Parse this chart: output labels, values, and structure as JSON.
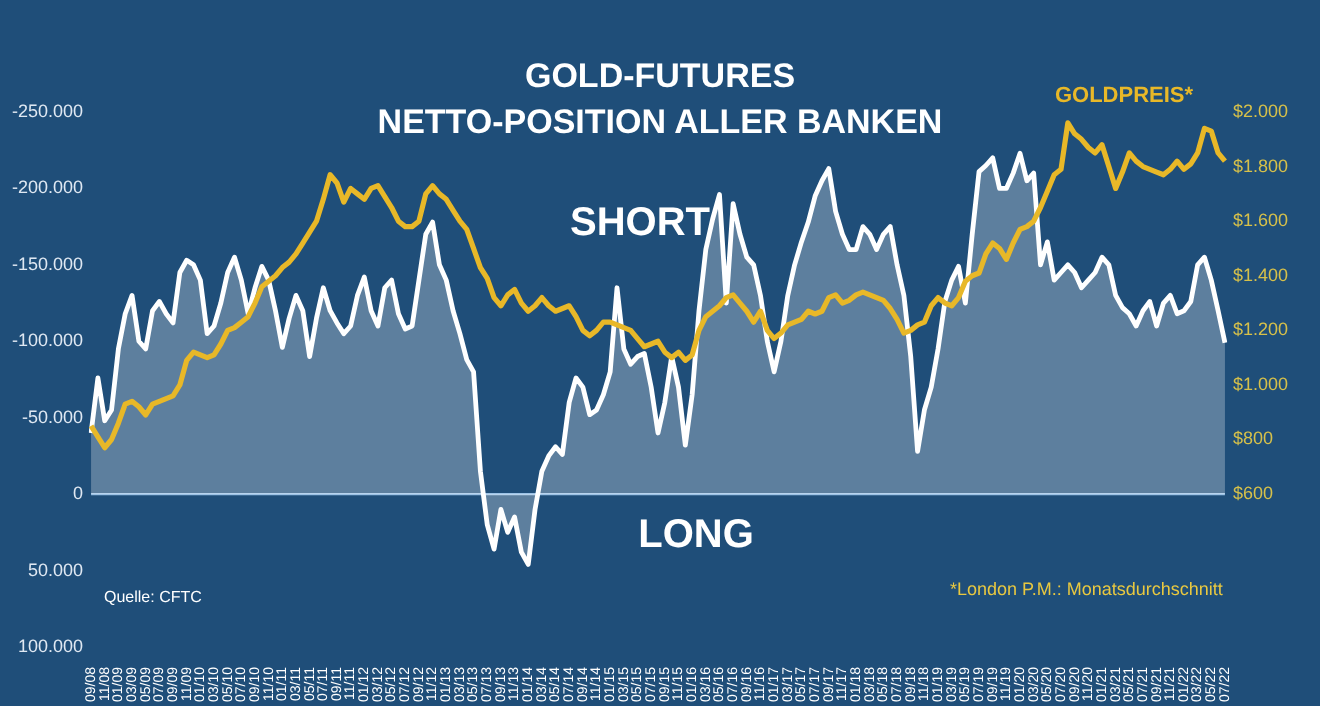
{
  "chart_data": {
    "type": "line",
    "title": "GOLD-FUTURES",
    "subtitle": "NETTO-POSITION ALLER BANKEN",
    "categories": [
      "09/08",
      null,
      "11/08",
      null,
      "01/09",
      null,
      "03/09",
      null,
      "05/09",
      null,
      "07/09",
      null,
      "09/09",
      null,
      "11/09",
      null,
      "01/10",
      null,
      "03/10",
      null,
      "05/10",
      null,
      "07/10",
      null,
      "09/10",
      null,
      "11/10",
      null,
      "01/11",
      null,
      "03/11",
      null,
      "05/11",
      null,
      "07/11",
      null,
      "09/11",
      null,
      "11/11",
      null,
      "01/12",
      null,
      "03/12",
      null,
      "05/12",
      null,
      "07/12",
      null,
      "09/12",
      null,
      "11/12",
      null,
      "01/13",
      null,
      "03/13",
      null,
      "05/13",
      null,
      "07/13",
      null,
      "09/13",
      null,
      "11/13",
      null,
      "01/14",
      null,
      "03/14",
      null,
      "05/14",
      null,
      "07/14",
      null,
      "09/14",
      null,
      "11/14",
      null,
      "01/15",
      null,
      "03/15",
      null,
      "05/15",
      null,
      "07/15",
      null,
      "09/15",
      null,
      "11/15",
      null,
      "01/16",
      null,
      "03/16",
      null,
      "05/16",
      null,
      "07/16",
      null,
      "09/16",
      null,
      "11/16",
      null,
      "01/17",
      null,
      "03/17",
      null,
      "05/17",
      null,
      "07/17",
      null,
      "09/17",
      null,
      "11/17",
      null,
      "01/18",
      null,
      "03/18",
      null,
      "05/18",
      null,
      "07/18",
      null,
      "09/18",
      null,
      "11/18",
      null,
      "01/19",
      null,
      "03/19",
      null,
      "05/19",
      null,
      "07/19",
      null,
      "09/19",
      null,
      "11/19",
      null,
      "01/20",
      null,
      "03/20",
      null,
      "05/20",
      null,
      "07/20",
      null,
      "09/20",
      null,
      "11/20",
      null,
      "01/21",
      null,
      "03/21",
      null,
      "05/21",
      null,
      "07/21",
      null,
      "09/21",
      null,
      "11/21",
      null,
      "01/22",
      null,
      "03/22",
      null,
      "05/22",
      null,
      "07/22"
    ],
    "series": [
      {
        "type": "area",
        "color": "#ffffff",
        "values": [
          -40000,
          -76000,
          -48000,
          -55000,
          -95000,
          -118000,
          -130000,
          -100000,
          -95000,
          -120000,
          -126000,
          -118000,
          -112000,
          -145000,
          -153000,
          -150000,
          -140000,
          -105000,
          -110000,
          -125000,
          -145000,
          -155000,
          -140000,
          -118000,
          -135000,
          -149000,
          -140000,
          -120000,
          -96000,
          -115000,
          -130000,
          -120000,
          -90000,
          -115000,
          -135000,
          -120000,
          -112000,
          -105000,
          -110000,
          -130000,
          -142000,
          -120000,
          -110000,
          -135000,
          -140000,
          -118000,
          -108000,
          -110000,
          -140000,
          -170000,
          -178000,
          -150000,
          -140000,
          -120000,
          -105000,
          -88000,
          -80000,
          -15000,
          20000,
          36000,
          10000,
          25000,
          15000,
          38000,
          46000,
          10000,
          -15000,
          -25000,
          -31000,
          -26000,
          -60000,
          -76000,
          -70000,
          -52000,
          -55000,
          -65000,
          -80000,
          -135000,
          -95000,
          -85000,
          -90000,
          -92000,
          -70000,
          -40000,
          -60000,
          -90000,
          -70000,
          -32000,
          -65000,
          -120000,
          -160000,
          -180000,
          -196000,
          -125000,
          -190000,
          -170000,
          -155000,
          -150000,
          -130000,
          -100000,
          -80000,
          -100000,
          -130000,
          -150000,
          -165000,
          -178000,
          -195000,
          -205000,
          -213000,
          -185000,
          -170000,
          -160000,
          -160000,
          -175000,
          -170000,
          -160000,
          -170000,
          -175000,
          -150000,
          -130000,
          -90000,
          -28000,
          -55000,
          -70000,
          -95000,
          -126000,
          -140000,
          -149000,
          -125000,
          -170000,
          -211000,
          -215000,
          -220000,
          -200000,
          -200000,
          -210000,
          -223000,
          -205000,
          -210000,
          -150000,
          -165000,
          -140000,
          -145000,
          -150000,
          -145000,
          -135000,
          -140000,
          -145000,
          -155000,
          -150000,
          -130000,
          -122000,
          -118000,
          -110000,
          -120000,
          -126000,
          -110000,
          -125000,
          -130000,
          -118000,
          -120000,
          -126000,
          -150000,
          -155000,
          -140000,
          -120000,
          -99000
        ]
      },
      {
        "type": "line",
        "name": "GOLDPREIS*",
        "color": "#e8b828",
        "axis": "y2",
        "values": [
          850,
          810,
          770,
          800,
          860,
          930,
          940,
          920,
          890,
          930,
          940,
          950,
          960,
          1000,
          1090,
          1120,
          1110,
          1100,
          1110,
          1150,
          1200,
          1210,
          1230,
          1250,
          1300,
          1360,
          1380,
          1400,
          1430,
          1450,
          1480,
          1520,
          1560,
          1600,
          1680,
          1770,
          1740,
          1670,
          1720,
          1700,
          1680,
          1720,
          1730,
          1690,
          1650,
          1600,
          1580,
          1580,
          1600,
          1700,
          1730,
          1700,
          1680,
          1640,
          1600,
          1570,
          1500,
          1430,
          1390,
          1320,
          1290,
          1330,
          1350,
          1300,
          1270,
          1290,
          1320,
          1290,
          1270,
          1280,
          1290,
          1250,
          1200,
          1180,
          1200,
          1230,
          1230,
          1220,
          1210,
          1200,
          1170,
          1140,
          1150,
          1160,
          1120,
          1100,
          1120,
          1090,
          1110,
          1200,
          1250,
          1270,
          1290,
          1320,
          1330,
          1300,
          1270,
          1230,
          1270,
          1200,
          1170,
          1190,
          1220,
          1230,
          1240,
          1270,
          1260,
          1270,
          1320,
          1330,
          1300,
          1310,
          1330,
          1340,
          1330,
          1320,
          1310,
          1280,
          1240,
          1190,
          1200,
          1220,
          1230,
          1290,
          1320,
          1300,
          1290,
          1320,
          1380,
          1400,
          1410,
          1480,
          1520,
          1500,
          1460,
          1520,
          1570,
          1580,
          1600,
          1650,
          1710,
          1770,
          1790,
          1960,
          1920,
          1900,
          1870,
          1850,
          1880,
          1800,
          1720,
          1780,
          1850,
          1820,
          1800,
          1790,
          1780,
          1770,
          1790,
          1820,
          1790,
          1810,
          1850,
          1940,
          1930,
          1850,
          1820
        ]
      }
    ],
    "ylim": [
      100000,
      -250000
    ],
    "yticks": [
      {
        "value": -250000,
        "label": "-250.000"
      },
      {
        "value": -200000,
        "label": "-200.000"
      },
      {
        "value": -150000,
        "label": "-150.000"
      },
      {
        "value": -100000,
        "label": "-100.000"
      },
      {
        "value": -50000,
        "label": "-50.000"
      },
      0,
      {
        "value": 50000,
        "label": "50.000"
      },
      {
        "value": 100000,
        "label": "100.000"
      }
    ],
    "y2lim": [
      600,
      2000
    ],
    "y2ticks": [
      {
        "value": 600,
        "label": "$600"
      },
      {
        "value": 800,
        "label": "$800"
      },
      {
        "value": 1000,
        "label": "$1.000"
      },
      {
        "value": 1200,
        "label": "$1.200"
      },
      {
        "value": 1400,
        "label": "$1.400"
      },
      {
        "value": 1600,
        "label": "$1.600"
      },
      {
        "value": 1800,
        "label": "$1.800"
      },
      {
        "value": 2000,
        "label": "$2.000"
      }
    ],
    "ref_lines": [
      {
        "axis": "y",
        "value": 0,
        "color": "#9dc3e6"
      }
    ],
    "annotations": [
      "SHORT",
      "LONG",
      "Quelle: CFTC",
      "*London P.M.: Monatsdurchschnitt"
    ],
    "grid": false,
    "legend": false,
    "marker": "none"
  }
}
